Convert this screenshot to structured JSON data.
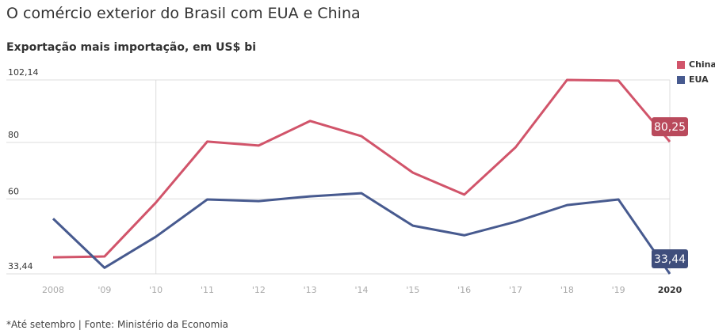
{
  "title": "O comércio exterior do Brasil com EUA e China",
  "subtitle": "Exportação mais importação, em US$ bi",
  "footer": "*Até setembro | Fonte: Ministério da Economia",
  "chart_data": {
    "type": "line",
    "title": "O comércio exterior do Brasil com EUA e China",
    "ylabel": "Exportação mais importação, em US$ bi",
    "x": [
      2008,
      2009,
      2010,
      2011,
      2012,
      2013,
      2014,
      2015,
      2016,
      2017,
      2018,
      2019,
      2020
    ],
    "x_tick_labels": [
      "2008",
      "'09",
      "'10",
      "'11",
      "'12",
      "'13",
      "'14",
      "'15",
      "'16",
      "'17",
      "'18",
      "'19",
      "2020"
    ],
    "y_ticks": [
      33.44,
      60,
      80,
      102.14
    ],
    "y_tick_labels": [
      "33,44",
      "60",
      "80",
      "102,14"
    ],
    "ylim": [
      33.44,
      102.14
    ],
    "legend_position": "top-right",
    "series": [
      {
        "name": "China",
        "color": "#d1546a",
        "label_color": "#b94a5c",
        "end_label": "80,25",
        "values": [
          39.3,
          39.6,
          58.7,
          80.3,
          78.9,
          87.6,
          82.2,
          69.3,
          61.5,
          78.3,
          102.14,
          101.9,
          80.25
        ]
      },
      {
        "name": "EUA",
        "color": "#475a8f",
        "label_color": "#3f4e7c",
        "end_label": "33,44",
        "values": [
          53.0,
          35.6,
          46.6,
          59.8,
          59.2,
          60.9,
          62.0,
          50.5,
          47.1,
          51.9,
          57.8,
          59.8,
          33.44
        ]
      }
    ]
  }
}
